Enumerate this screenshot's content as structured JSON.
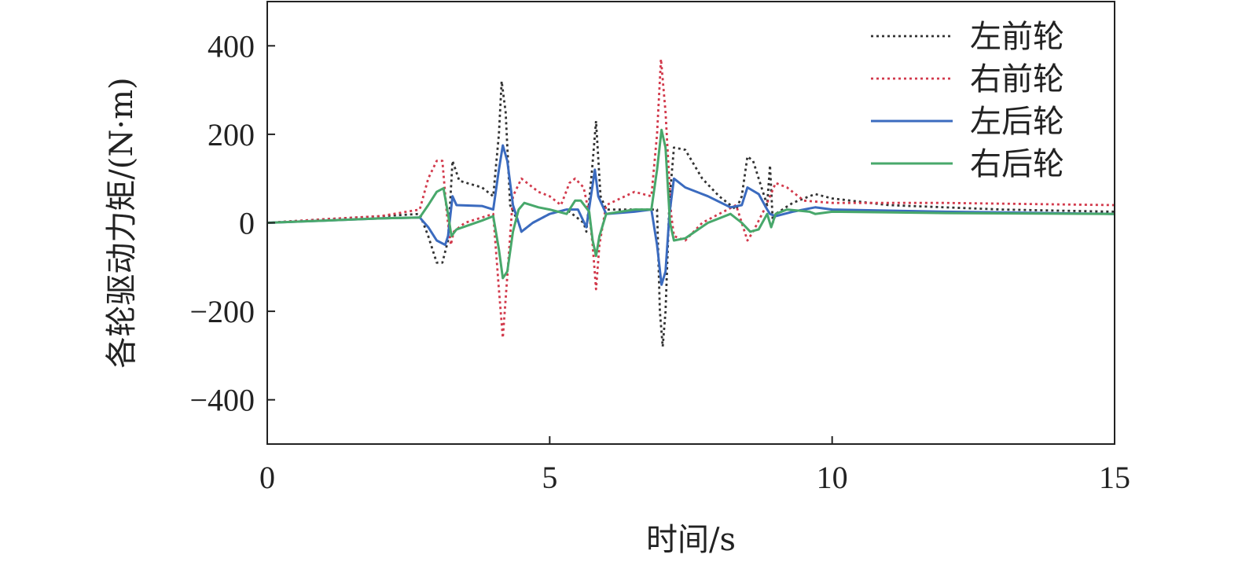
{
  "chart_data": {
    "type": "line",
    "title": "",
    "xlabel": "时间/s",
    "ylabel": "各轮驱动力矩/(N·m)",
    "xlim": [
      0,
      15
    ],
    "ylim": [
      -500,
      500
    ],
    "x_ticks": [
      0,
      5,
      10,
      15
    ],
    "y_ticks": [
      400,
      200,
      0,
      -200,
      -400
    ],
    "x_tick_labels": [
      "0",
      "5",
      "10",
      "15"
    ],
    "y_tick_labels": [
      "400",
      "200",
      "0",
      "−200",
      "−400"
    ],
    "grid": false,
    "legend_position": "top-right",
    "series": [
      {
        "name": "左前轮",
        "color": "#333333",
        "style": "dotted",
        "points": [
          [
            0,
            0
          ],
          [
            1,
            8
          ],
          [
            2,
            15
          ],
          [
            2.7,
            20
          ],
          [
            2.85,
            -30
          ],
          [
            3.0,
            -90
          ],
          [
            3.1,
            -90
          ],
          [
            3.2,
            -40
          ],
          [
            3.28,
            140
          ],
          [
            3.4,
            95
          ],
          [
            3.8,
            80
          ],
          [
            4.0,
            60
          ],
          [
            4.1,
            200
          ],
          [
            4.15,
            320
          ],
          [
            4.22,
            250
          ],
          [
            4.3,
            40
          ],
          [
            4.45,
            0
          ],
          [
            4.5,
            -20
          ],
          [
            4.7,
            0
          ],
          [
            5.0,
            20
          ],
          [
            5.3,
            30
          ],
          [
            5.5,
            10
          ],
          [
            5.6,
            0
          ],
          [
            5.65,
            -20
          ],
          [
            5.75,
            120
          ],
          [
            5.82,
            230
          ],
          [
            5.9,
            60
          ],
          [
            6.0,
            30
          ],
          [
            6.5,
            30
          ],
          [
            6.9,
            30
          ],
          [
            6.95,
            -200
          ],
          [
            7.0,
            -280
          ],
          [
            7.05,
            -200
          ],
          [
            7.12,
            50
          ],
          [
            7.2,
            170
          ],
          [
            7.4,
            165
          ],
          [
            7.7,
            100
          ],
          [
            8.0,
            60
          ],
          [
            8.3,
            30
          ],
          [
            8.4,
            60
          ],
          [
            8.5,
            150
          ],
          [
            8.6,
            140
          ],
          [
            8.75,
            80
          ],
          [
            8.85,
            40
          ],
          [
            8.9,
            130
          ],
          [
            8.95,
            0
          ],
          [
            9.0,
            20
          ],
          [
            9.3,
            45
          ],
          [
            9.7,
            65
          ],
          [
            10.0,
            55
          ],
          [
            11.0,
            40
          ],
          [
            13.0,
            30
          ],
          [
            15.0,
            25
          ]
        ]
      },
      {
        "name": "右前轮",
        "color": "#d23a4c",
        "style": "dotted",
        "points": [
          [
            0,
            0
          ],
          [
            1,
            8
          ],
          [
            2,
            15
          ],
          [
            2.7,
            30
          ],
          [
            2.85,
            100
          ],
          [
            3.0,
            140
          ],
          [
            3.1,
            140
          ],
          [
            3.18,
            20
          ],
          [
            3.25,
            -50
          ],
          [
            3.3,
            -20
          ],
          [
            3.5,
            0
          ],
          [
            4.0,
            20
          ],
          [
            4.1,
            -150
          ],
          [
            4.17,
            -260
          ],
          [
            4.25,
            -120
          ],
          [
            4.35,
            60
          ],
          [
            4.5,
            100
          ],
          [
            4.8,
            70
          ],
          [
            5.0,
            60
          ],
          [
            5.2,
            40
          ],
          [
            5.35,
            90
          ],
          [
            5.45,
            100
          ],
          [
            5.6,
            80
          ],
          [
            5.7,
            20
          ],
          [
            5.76,
            -50
          ],
          [
            5.82,
            -150
          ],
          [
            5.88,
            -50
          ],
          [
            6.0,
            40
          ],
          [
            6.5,
            70
          ],
          [
            6.8,
            60
          ],
          [
            6.9,
            200
          ],
          [
            6.97,
            370
          ],
          [
            7.05,
            250
          ],
          [
            7.15,
            20
          ],
          [
            7.2,
            -30
          ],
          [
            7.4,
            -40
          ],
          [
            7.7,
            0
          ],
          [
            8.0,
            20
          ],
          [
            8.3,
            40
          ],
          [
            8.5,
            -40
          ],
          [
            8.6,
            -20
          ],
          [
            8.8,
            30
          ],
          [
            9.0,
            90
          ],
          [
            9.2,
            80
          ],
          [
            9.5,
            50
          ],
          [
            10.0,
            45
          ],
          [
            12.0,
            45
          ],
          [
            15.0,
            40
          ]
        ]
      },
      {
        "name": "左后轮",
        "color": "#3b6bbf",
        "style": "solid",
        "points": [
          [
            0,
            0
          ],
          [
            1,
            5
          ],
          [
            2,
            10
          ],
          [
            2.7,
            12
          ],
          [
            2.85,
            -10
          ],
          [
            3.0,
            -40
          ],
          [
            3.15,
            -50
          ],
          [
            3.2,
            -30
          ],
          [
            3.28,
            60
          ],
          [
            3.35,
            40
          ],
          [
            3.8,
            38
          ],
          [
            4.0,
            30
          ],
          [
            4.1,
            120
          ],
          [
            4.17,
            175
          ],
          [
            4.25,
            140
          ],
          [
            4.35,
            40
          ],
          [
            4.5,
            -20
          ],
          [
            4.7,
            0
          ],
          [
            5.0,
            20
          ],
          [
            5.3,
            30
          ],
          [
            5.5,
            30
          ],
          [
            5.65,
            -10
          ],
          [
            5.73,
            60
          ],
          [
            5.8,
            120
          ],
          [
            5.86,
            60
          ],
          [
            6.0,
            20
          ],
          [
            6.5,
            25
          ],
          [
            6.8,
            30
          ],
          [
            6.9,
            -50
          ],
          [
            6.98,
            -140
          ],
          [
            7.05,
            -110
          ],
          [
            7.12,
            20
          ],
          [
            7.2,
            100
          ],
          [
            7.4,
            80
          ],
          [
            7.8,
            60
          ],
          [
            8.2,
            35
          ],
          [
            8.4,
            40
          ],
          [
            8.5,
            80
          ],
          [
            8.7,
            65
          ],
          [
            8.85,
            30
          ],
          [
            8.9,
            20
          ],
          [
            9.0,
            15
          ],
          [
            9.3,
            25
          ],
          [
            9.7,
            35
          ],
          [
            10.0,
            30
          ],
          [
            12.0,
            25
          ],
          [
            15.0,
            20
          ]
        ]
      },
      {
        "name": "右后轮",
        "color": "#48a86b",
        "style": "solid",
        "points": [
          [
            0,
            0
          ],
          [
            1,
            5
          ],
          [
            2,
            10
          ],
          [
            2.7,
            12
          ],
          [
            2.85,
            40
          ],
          [
            3.0,
            70
          ],
          [
            3.12,
            78
          ],
          [
            3.2,
            20
          ],
          [
            3.26,
            -30
          ],
          [
            3.35,
            -15
          ],
          [
            3.8,
            5
          ],
          [
            4.0,
            15
          ],
          [
            4.1,
            -60
          ],
          [
            4.17,
            -125
          ],
          [
            4.25,
            -110
          ],
          [
            4.35,
            -20
          ],
          [
            4.45,
            30
          ],
          [
            4.55,
            45
          ],
          [
            4.8,
            35
          ],
          [
            5.0,
            30
          ],
          [
            5.3,
            20
          ],
          [
            5.45,
            50
          ],
          [
            5.55,
            50
          ],
          [
            5.7,
            25
          ],
          [
            5.76,
            -40
          ],
          [
            5.82,
            -75
          ],
          [
            5.88,
            -30
          ],
          [
            6.0,
            20
          ],
          [
            6.5,
            30
          ],
          [
            6.8,
            30
          ],
          [
            6.9,
            120
          ],
          [
            6.98,
            210
          ],
          [
            7.05,
            170
          ],
          [
            7.13,
            0
          ],
          [
            7.2,
            -40
          ],
          [
            7.4,
            -35
          ],
          [
            7.8,
            0
          ],
          [
            8.2,
            20
          ],
          [
            8.4,
            0
          ],
          [
            8.55,
            -20
          ],
          [
            8.7,
            -15
          ],
          [
            8.85,
            20
          ],
          [
            8.92,
            -10
          ],
          [
            9.0,
            20
          ],
          [
            9.2,
            30
          ],
          [
            9.6,
            25
          ],
          [
            9.7,
            20
          ],
          [
            10.0,
            25
          ],
          [
            12.0,
            22
          ],
          [
            15.0,
            20
          ]
        ]
      }
    ]
  }
}
